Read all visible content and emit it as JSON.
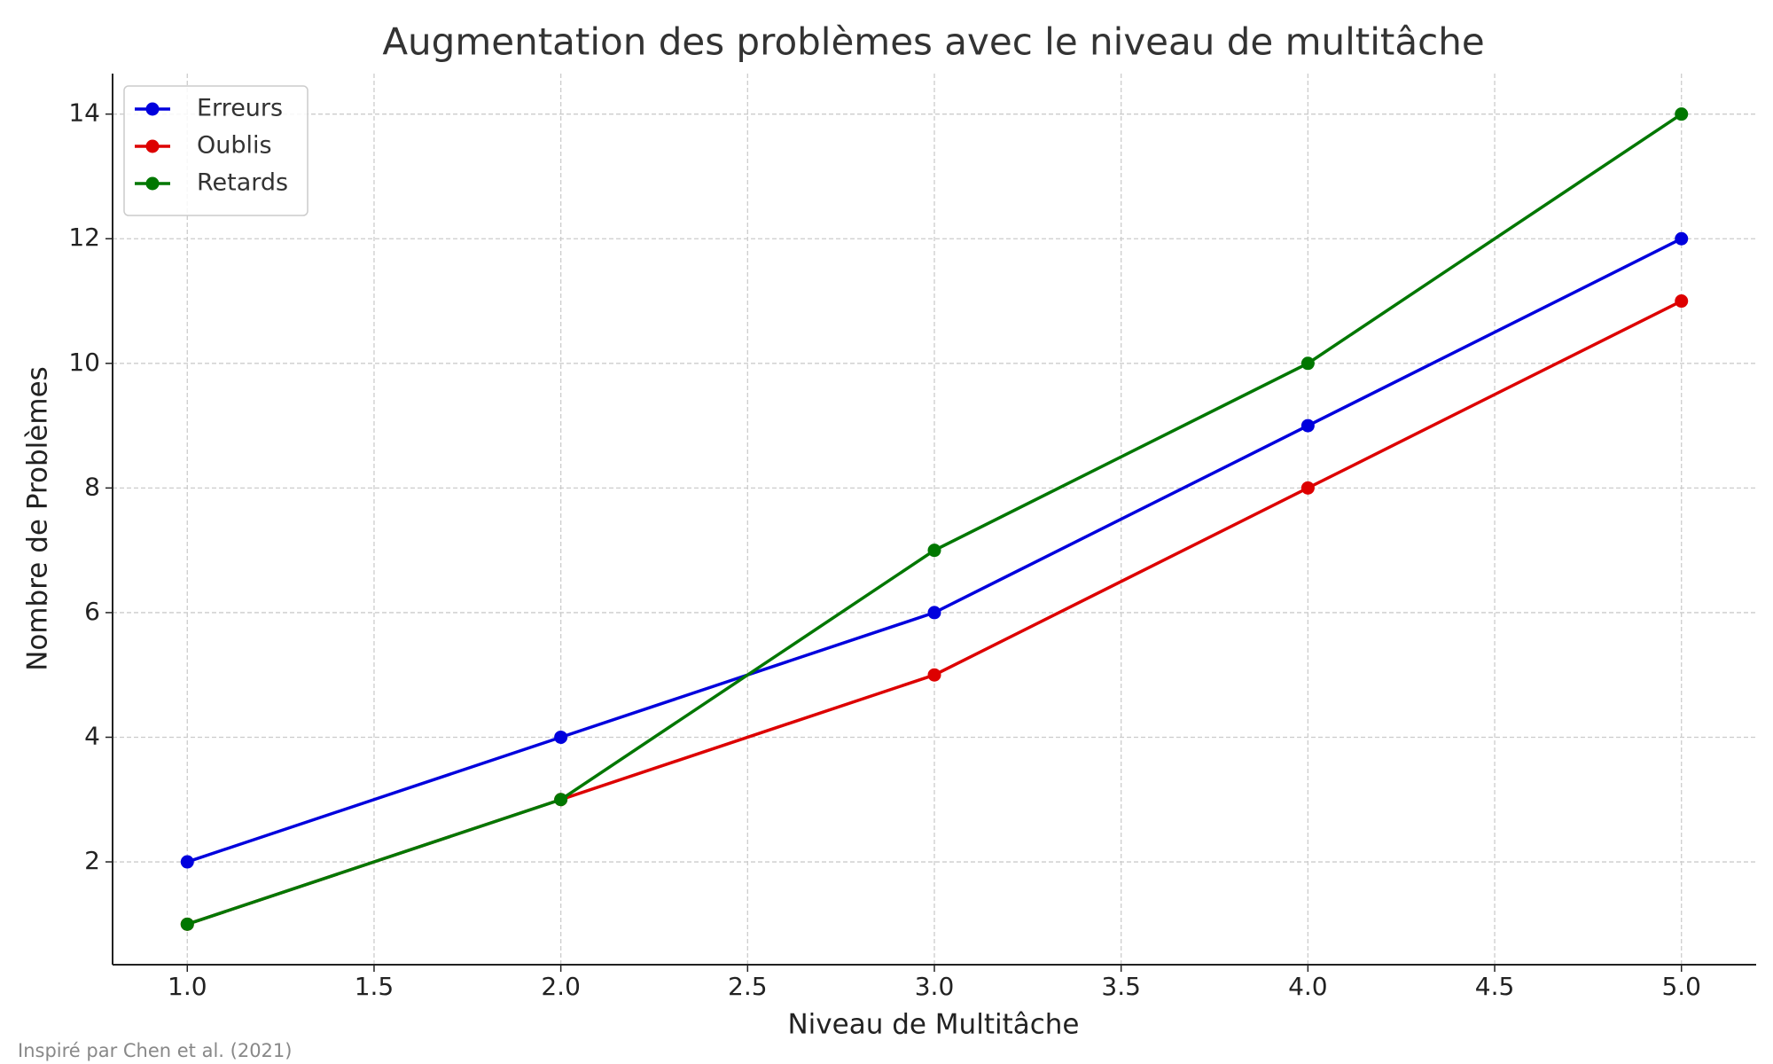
{
  "chart_data": {
    "type": "line",
    "title": "Augmentation des problèmes avec le niveau de multitâche",
    "x_label": "Niveau de Multitâche",
    "y_label": "Nombre de Problèmes",
    "footnote": "Inspiré par Chen et al. (2021)",
    "x": [
      1,
      2,
      3,
      4,
      5
    ],
    "series": [
      {
        "name": "Erreurs",
        "color": "#0000dd",
        "values": [
          2,
          4,
          6,
          9,
          12
        ]
      },
      {
        "name": "Oublis",
        "color": "#dd0000",
        "values": [
          1,
          3,
          5,
          8,
          11
        ]
      },
      {
        "name": "Retards",
        "color": "#007700",
        "values": [
          1,
          3,
          7,
          10,
          14
        ]
      }
    ],
    "xlim": [
      0.8,
      5.2
    ],
    "ylim": [
      0.35,
      14.65
    ],
    "xticks": [
      {
        "value": 1,
        "label": "1.0"
      },
      {
        "value": 1.5,
        "label": "1.5"
      },
      {
        "value": 2,
        "label": "2.0"
      },
      {
        "value": 2.5,
        "label": "2.5"
      },
      {
        "value": 3,
        "label": "3.0"
      },
      {
        "value": 3.5,
        "label": "3.5"
      },
      {
        "value": 4,
        "label": "4.0"
      },
      {
        "value": 4.5,
        "label": "4.5"
      },
      {
        "value": 5,
        "label": "5.0"
      }
    ],
    "yticks": [
      2,
      4,
      6,
      8,
      10,
      12,
      14
    ],
    "grid": true,
    "legend": "upper left"
  }
}
